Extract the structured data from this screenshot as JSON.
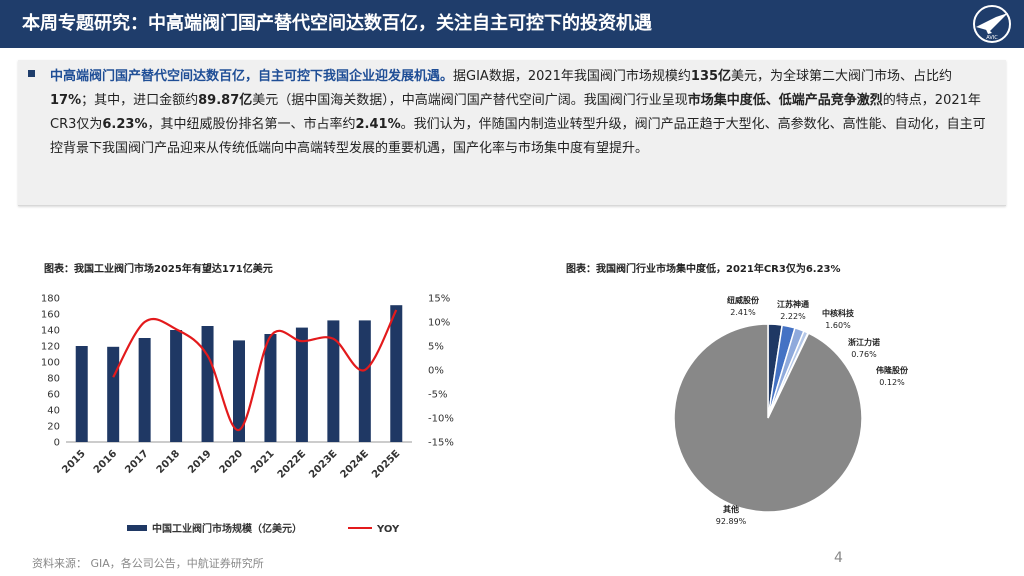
{
  "header": {
    "title": "本周专题研究：中高端阀门国产替代空间达数百亿，关注自主可控下的投资机遇"
  },
  "summary": {
    "p1": "中高端阀门国产替代空间达数百亿，自主可控下我国企业迎发展机遇。",
    "p2": "据GIA数据，2021年我国阀门市场规模约",
    "p3": "135亿",
    "p4": "美元，为全球第二大阀门市场、占比约",
    "p5": "17%",
    "p6": "；其中，进口金额约",
    "p7": "89.87亿",
    "p8": "美元（据中国海关数据），中高端阀门国产替代空间广阔。我国阀门行业呈现",
    "p9": "市场集中度低、低端产品竞争激烈",
    "p10": "的特点，2021年CR3仅为",
    "p11": "6.23%",
    "p12": "，其中纽威股份排名第一、市占率约",
    "p13": "2.41%",
    "p14": "。我们认为，伴随国内制造业转型升级，阀门产品正趋于大型化、高参数化、高性能、自动化，自主可控背景下我国阀门产品迎来从传统低端向中高端转型发展的重要机遇，国产化率与市场集中度有望提升。"
  },
  "chart1": {
    "title": "图表：我国工业阀门市场2025年有望达171亿美元"
  },
  "chart2": {
    "title": "图表：我国阀门行业市场集中度低，2021年CR3仅为6.23%"
  },
  "chart_data": [
    {
      "type": "bar",
      "title": "图表：我国工业阀门市场2025年有望达171亿美元",
      "categories": [
        "2015",
        "2016",
        "2017",
        "2018",
        "2019",
        "2020",
        "2021",
        "2022E",
        "2023E",
        "2024E",
        "2025E"
      ],
      "series": [
        {
          "name": "中国工业阀门市场规模（亿美元）",
          "type": "bar",
          "axis": "left",
          "values": [
            120,
            119,
            130,
            140,
            145,
            127,
            135,
            143,
            152,
            152,
            171
          ]
        },
        {
          "name": "YOY",
          "type": "line",
          "axis": "right",
          "values": [
            null,
            -1.5,
            10.0,
            8.5,
            3.0,
            -12.5,
            7.0,
            6.0,
            6.5,
            0.0,
            12.5
          ]
        }
      ],
      "y_left": {
        "range": [
          0,
          180
        ],
        "ticks": [
          "0",
          "20",
          "40",
          "60",
          "80",
          "100",
          "120",
          "140",
          "160",
          "180"
        ]
      },
      "y_right": {
        "range": [
          -15,
          15
        ],
        "ticks": [
          "15%",
          "10%",
          "5%",
          "0%",
          "-5%",
          "-10%",
          "-15%"
        ]
      },
      "colors": {
        "bar": "#1f3864",
        "line": "#e31a1c"
      },
      "legend_position": "bottom"
    },
    {
      "type": "pie",
      "title": "图表：我国阀门行业市场集中度低，2021年CR3仅为6.23%",
      "slices": [
        {
          "label": "纽威股份",
          "value": 2.41,
          "text": "2.41%",
          "color": "#1f3864"
        },
        {
          "label": "江苏神通",
          "value": 2.22,
          "text": "2.22%",
          "color": "#4472c4"
        },
        {
          "label": "中核科技",
          "value": 1.6,
          "text": "1.60%",
          "color": "#8faadc"
        },
        {
          "label": "浙江力诺",
          "value": 0.76,
          "text": "0.76%",
          "color": "#b4c7e7"
        },
        {
          "label": "伟隆股份",
          "value": 0.12,
          "text": "0.12%",
          "color": "#d9e1f2"
        },
        {
          "label": "其他",
          "value": 92.89,
          "text": "92.89%",
          "color": "#888888"
        }
      ]
    }
  ],
  "footer": {
    "source": "资料来源： GIA，各公司公告，中航证券研究所",
    "page": "4"
  }
}
